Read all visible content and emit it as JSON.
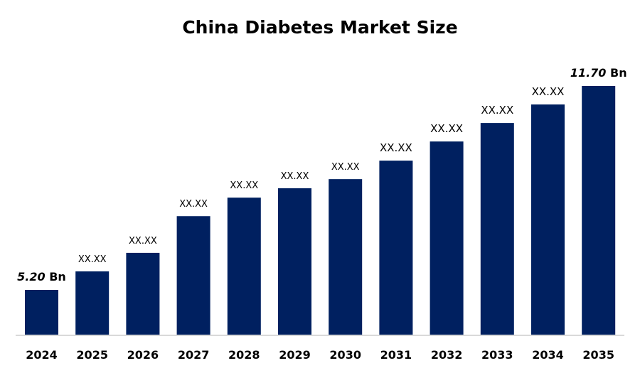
{
  "chart_data": {
    "type": "bar",
    "title": "China Diabetes Market Size",
    "xlabel": "",
    "ylabel": "",
    "categories": [
      "2024",
      "2025",
      "2026",
      "2027",
      "2028",
      "2029",
      "2030",
      "2031",
      "2032",
      "2033",
      "2034",
      "2035"
    ],
    "values": [
      5.2,
      5.79,
      6.38,
      7.55,
      8.14,
      8.44,
      8.73,
      9.32,
      9.93,
      10.52,
      11.11,
      11.7
    ],
    "data_labels": [
      {
        "value": "5.20",
        "unit": "Bn"
      },
      {
        "value": "XX.XX"
      },
      {
        "value": "XX.XX"
      },
      {
        "value": "XX.XX"
      },
      {
        "value": "XX.XX"
      },
      {
        "value": "XX.XX"
      },
      {
        "value": "XX.XX"
      },
      {
        "value": "XX.XX"
      },
      {
        "value": "XX.XX"
      },
      {
        "value": "XX.XX"
      },
      {
        "value": "XX.XX"
      },
      {
        "value": "11.70",
        "unit": "Bn"
      }
    ],
    "bar_color": "#002060",
    "axis_line_color": "#d9d9d9",
    "grid": false,
    "legend": "none",
    "y_axis_visible": false
  }
}
